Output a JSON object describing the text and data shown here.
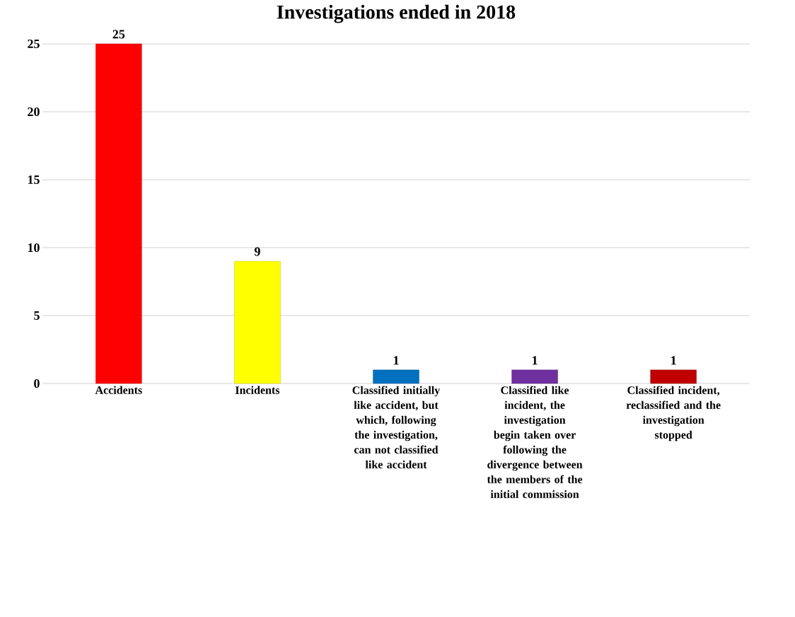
{
  "chart_data": {
    "type": "bar",
    "title": "Investigations ended in 2018",
    "categories": [
      "Accidents",
      "Incidents",
      "Classified initially like accident, but which, following the investigation, can not classified like accident",
      "Classified like incident, the investigation begin taken over following the divergence between the members of the initial commission",
      "Classified incident, reclassified and the investigation stopped"
    ],
    "values": [
      25,
      9,
      1,
      1,
      1
    ],
    "colors": [
      "#ff0000",
      "#ffff00",
      "#0070c0",
      "#7030a0",
      "#c00000"
    ],
    "ylim": [
      0,
      25
    ],
    "yticks": [
      0,
      5,
      10,
      15,
      20,
      25
    ],
    "grid": "y",
    "data_labels": true
  }
}
